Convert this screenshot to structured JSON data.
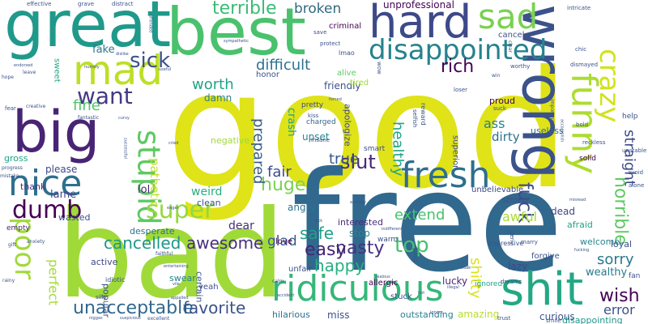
{
  "image": {
    "type": "word-cloud",
    "background": "#ffffff",
    "palette": [
      "#e5e419",
      "#a8db34",
      "#5ec962",
      "#28ae80",
      "#21918c",
      "#2c728e",
      "#3b528b",
      "#472d7b",
      "#440154"
    ]
  },
  "words": [
    {
      "text": "good",
      "color": "#dfe318"
    },
    {
      "text": "free",
      "color": "#31688e"
    },
    {
      "text": "bad",
      "color": "#a0da39"
    },
    {
      "text": "best",
      "color": "#4ac16d"
    },
    {
      "text": "great",
      "color": "#1f998a"
    },
    {
      "text": "wrong",
      "color": "#3b528b"
    },
    {
      "text": "big",
      "color": "#482475"
    },
    {
      "text": "hard",
      "color": "#3e4989"
    },
    {
      "text": "shit",
      "color": "#22a884"
    },
    {
      "text": "mad",
      "color": "#bddf26"
    },
    {
      "text": "nice",
      "color": "#2d708e"
    },
    {
      "text": "ridiculous",
      "color": "#35b779"
    },
    {
      "text": "fresh",
      "color": "#2e6e8e"
    },
    {
      "text": "funny",
      "color": "#addc30"
    },
    {
      "text": "sad",
      "color": "#7ad151"
    },
    {
      "text": "disappointed",
      "color": "#26828e"
    },
    {
      "text": "poor",
      "color": "#a0da39"
    },
    {
      "text": "stupid",
      "color": "#5ec962"
    },
    {
      "text": "crazy",
      "color": "#d2e21b"
    },
    {
      "text": "super",
      "color": "#95d840"
    },
    {
      "text": "dumb",
      "color": "#440154"
    },
    {
      "text": "want",
      "color": "#443983"
    },
    {
      "text": "sick",
      "color": "#3b528b"
    },
    {
      "text": "unacceptable",
      "color": "#31688e"
    },
    {
      "text": "terrible",
      "color": "#3bbb75"
    },
    {
      "text": "huge",
      "color": "#7ad151"
    },
    {
      "text": "slut",
      "color": "#482878"
    },
    {
      "text": "fuck",
      "color": "#3e4a89"
    },
    {
      "text": "top",
      "color": "#46c06f"
    },
    {
      "text": "horrible",
      "color": "#5ec962"
    },
    {
      "text": "straight",
      "color": "#3e4989"
    },
    {
      "text": "rich",
      "color": "#440154"
    },
    {
      "text": "cancelled",
      "color": "#1f968b"
    },
    {
      "text": "favorite",
      "color": "#3b528b"
    },
    {
      "text": "awesome",
      "color": "#472f7d"
    },
    {
      "text": "nasty",
      "color": "#46337f"
    },
    {
      "text": "easy",
      "color": "#482475"
    },
    {
      "text": "happy",
      "color": "#28ae80"
    },
    {
      "text": "sorry",
      "color": "#2a788e"
    },
    {
      "text": "wish",
      "color": "#440154"
    },
    {
      "text": "shitty",
      "color": "#d8e219"
    },
    {
      "text": "worth",
      "color": "#20a486"
    },
    {
      "text": "difficult",
      "color": "#2c728e"
    },
    {
      "text": "broken",
      "color": "#30697e"
    },
    {
      "text": "true",
      "color": "#38588c"
    },
    {
      "text": "safe",
      "color": "#1fa187"
    },
    {
      "text": "fair",
      "color": "#3e4a89"
    },
    {
      "text": "perfect",
      "color": "#a5db36"
    },
    {
      "text": "fine",
      "color": "#52c569"
    },
    {
      "text": "healthy",
      "color": "#20a386"
    },
    {
      "text": "pathetic",
      "color": "#c2df23"
    },
    {
      "text": "prepared",
      "color": "#365c8d"
    },
    {
      "text": "extend",
      "color": "#48c16e"
    },
    {
      "text": "error",
      "color": "#3b528b"
    },
    {
      "text": "amazing",
      "color": "#b5de2b"
    },
    {
      "text": "unprofessional",
      "color": "#440154"
    },
    {
      "text": "ass",
      "color": "#26828e"
    },
    {
      "text": "dirty",
      "color": "#2c728e"
    },
    {
      "text": "weird",
      "color": "#27ad81"
    },
    {
      "text": "lol",
      "color": "#482475"
    },
    {
      "text": "please",
      "color": "#3e4989"
    },
    {
      "text": "lame",
      "color": "#3e4989"
    },
    {
      "text": "glad",
      "color": "#39568c"
    },
    {
      "text": "awful",
      "color": "#a8db34"
    },
    {
      "text": "dead",
      "color": "#414487"
    },
    {
      "text": "dear",
      "color": "#472d7b"
    },
    {
      "text": "healthy2",
      "color": "#20a386"
    },
    {
      "text": "damn",
      "color": "#27808e"
    },
    {
      "text": "crash",
      "color": "#1fa187"
    },
    {
      "text": "fake",
      "color": "#2a788e"
    },
    {
      "text": "thank",
      "color": "#46337f"
    },
    {
      "text": "upset",
      "color": "#25858e"
    },
    {
      "text": "apologize",
      "color": "#3e4989"
    },
    {
      "text": "curious",
      "color": "#3b528b"
    },
    {
      "text": "outstanding",
      "color": "#26828e"
    },
    {
      "text": "hilarious",
      "color": "#2c728e"
    },
    {
      "text": "miss",
      "color": "#3b528b"
    },
    {
      "text": "lucky",
      "color": "#482878"
    },
    {
      "text": "wealthy",
      "color": "#2a788e"
    },
    {
      "text": "disappointing",
      "color": "#1f968b"
    },
    {
      "text": "lazy",
      "color": "#3e4989"
    },
    {
      "text": "interested",
      "color": "#472d7b"
    },
    {
      "text": "friendly",
      "color": "#3b528b"
    },
    {
      "text": "stop",
      "color": "#25858e"
    },
    {
      "text": "desperate",
      "color": "#2c728e"
    },
    {
      "text": "popular",
      "color": "#3b528b"
    },
    {
      "text": "wasted",
      "color": "#3e4989"
    },
    {
      "text": "gross",
      "color": "#20a486"
    },
    {
      "text": "clean",
      "color": "#3b528b"
    },
    {
      "text": "negative",
      "color": "#a0da39"
    },
    {
      "text": "proud",
      "color": "#440154"
    },
    {
      "text": "useless",
      "color": "#31688e"
    },
    {
      "text": "loyal",
      "color": "#3b528b"
    },
    {
      "text": "afraid",
      "color": "#20a486"
    },
    {
      "text": "welcome",
      "color": "#25858e"
    },
    {
      "text": "forgive",
      "color": "#3b528b"
    },
    {
      "text": "active",
      "color": "#3e4a89"
    },
    {
      "text": "swear",
      "color": "#26828e"
    },
    {
      "text": "certain",
      "color": "#3b528b"
    },
    {
      "text": "allergic",
      "color": "#440154"
    },
    {
      "text": "angry",
      "color": "#2c728e"
    },
    {
      "text": "love",
      "color": "#440154"
    },
    {
      "text": "unfair",
      "color": "#3b528b"
    },
    {
      "text": "stuck",
      "color": "#3b528b"
    },
    {
      "text": "yeah",
      "color": "#3b528b"
    },
    {
      "text": "empty",
      "color": "#482475"
    },
    {
      "text": "honor",
      "color": "#3b528b"
    },
    {
      "text": "alive",
      "color": "#5ec962"
    },
    {
      "text": "tired",
      "color": "#a0da39"
    },
    {
      "text": "pretty",
      "color": "#3e4989"
    },
    {
      "text": "charged",
      "color": "#31688e"
    },
    {
      "text": "strong",
      "color": "#3b528b"
    },
    {
      "text": "solid",
      "color": "#440154"
    },
    {
      "text": "superior",
      "color": "#3e4989"
    },
    {
      "text": "unbelievable",
      "color": "#3e4989"
    },
    {
      "text": "cancel",
      "color": "#3b528b"
    },
    {
      "text": "criminal",
      "color": "#440154"
    },
    {
      "text": "fan",
      "color": "#3b528b"
    },
    {
      "text": "help",
      "color": "#3b528b"
    },
    {
      "text": "sweet",
      "color": "#20a486"
    },
    {
      "text": "ignored",
      "color": "#20a486"
    },
    {
      "text": "warm",
      "color": "#3b528b"
    },
    {
      "text": "smart",
      "color": "#3e4989"
    },
    {
      "text": "impressive",
      "color": "#3b528b"
    },
    {
      "text": "dreams",
      "color": "#3e4989"
    },
    {
      "text": "reward",
      "color": "#3b528b"
    },
    {
      "text": "idiotic",
      "color": "#3b528b"
    },
    {
      "text": "silly",
      "color": "#3b528b"
    },
    {
      "text": "save",
      "color": "#3b528b"
    },
    {
      "text": "protect",
      "color": "#3b528b"
    },
    {
      "text": "lmao",
      "color": "#3b528b"
    },
    {
      "text": "upset2",
      "color": "#3b528b"
    },
    {
      "text": "kiss",
      "color": "#3b528b"
    },
    {
      "text": "wow",
      "color": "#3b528b"
    },
    {
      "text": "insane",
      "color": "#3b528b"
    },
    {
      "text": "piss",
      "color": "#3b528b"
    },
    {
      "text": "deny",
      "color": "#3b528b"
    },
    {
      "text": "marry",
      "color": "#3b528b"
    },
    {
      "text": "trust",
      "color": "#3b528b"
    },
    {
      "text": "smile",
      "color": "#3b528b"
    },
    {
      "text": "intricate",
      "color": "#3b528b"
    },
    {
      "text": "chic",
      "color": "#3b528b"
    },
    {
      "text": "worthy",
      "color": "#3b528b"
    },
    {
      "text": "dismayed",
      "color": "#3b528b"
    },
    {
      "text": "unstable",
      "color": "#3b528b"
    },
    {
      "text": "avoid",
      "color": "#3b528b"
    },
    {
      "text": "alone",
      "color": "#3b528b"
    },
    {
      "text": "reckless",
      "color": "#3b528b"
    },
    {
      "text": "bold",
      "color": "#3b528b"
    },
    {
      "text": "suck",
      "color": "#3b528b"
    },
    {
      "text": "selfish",
      "color": "#3b528b"
    },
    {
      "text": "loser",
      "color": "#3b528b"
    },
    {
      "text": "grave",
      "color": "#3b528b"
    },
    {
      "text": "distract",
      "color": "#3b528b"
    },
    {
      "text": "effective",
      "color": "#3b528b"
    },
    {
      "text": "leave",
      "color": "#3b528b"
    },
    {
      "text": "hope",
      "color": "#3b528b"
    },
    {
      "text": "fear",
      "color": "#3b528b"
    },
    {
      "text": "creative",
      "color": "#3b528b"
    },
    {
      "text": "fantastic",
      "color": "#3b528b"
    },
    {
      "text": "progress",
      "color": "#3b528b"
    },
    {
      "text": "mistake",
      "color": "#3b528b"
    },
    {
      "text": "gift",
      "color": "#3b528b"
    },
    {
      "text": "anxiety",
      "color": "#3b528b"
    },
    {
      "text": "rainy",
      "color": "#3b528b"
    },
    {
      "text": "faithful",
      "color": "#3b528b"
    },
    {
      "text": "entertaining",
      "color": "#3b528b"
    },
    {
      "text": "calm",
      "color": "#3b528b"
    },
    {
      "text": "jealous",
      "color": "#3b528b"
    },
    {
      "text": "weak",
      "color": "#3b528b"
    },
    {
      "text": "illegal",
      "color": "#3b528b"
    },
    {
      "text": "accident",
      "color": "#3b528b"
    },
    {
      "text": "appalled",
      "color": "#3b528b"
    },
    {
      "text": "excellent",
      "color": "#3b528b"
    },
    {
      "text": "suspicious",
      "color": "#3b528b"
    },
    {
      "text": "niggas",
      "color": "#3b528b"
    },
    {
      "text": "sympathetic",
      "color": "#3b528b"
    },
    {
      "text": "forced",
      "color": "#3b528b"
    },
    {
      "text": "endorsed",
      "color": "#3b528b"
    },
    {
      "text": "humbly",
      "color": "#3b528b"
    },
    {
      "text": "offended",
      "color": "#3b528b"
    },
    {
      "text": "eager",
      "color": "#3b528b"
    },
    {
      "text": "dick",
      "color": "#3b528b"
    },
    {
      "text": "misread",
      "color": "#3b528b"
    },
    {
      "text": "fucking",
      "color": "#3b528b"
    },
    {
      "text": "accomplish",
      "color": "#3b528b"
    },
    {
      "text": "important",
      "color": "#3b528b"
    },
    {
      "text": "clear",
      "color": "#3b528b"
    },
    {
      "text": "win",
      "color": "#3b528b"
    },
    {
      "text": "apology",
      "color": "#3b528b"
    },
    {
      "text": "indifferent",
      "color": "#3b528b"
    },
    {
      "text": "vile",
      "color": "#3b528b"
    },
    {
      "text": "cried",
      "color": "#3b528b"
    },
    {
      "text": "curvy",
      "color": "#3b528b"
    },
    {
      "text": "useful",
      "color": "#3b528b"
    },
    {
      "text": "dislike",
      "color": "#3b528b"
    },
    {
      "text": "successful",
      "color": "#3b528b"
    },
    {
      "text": "hot",
      "color": "#3b528b"
    },
    {
      "text": "ignore",
      "color": "#3b528b"
    }
  ]
}
